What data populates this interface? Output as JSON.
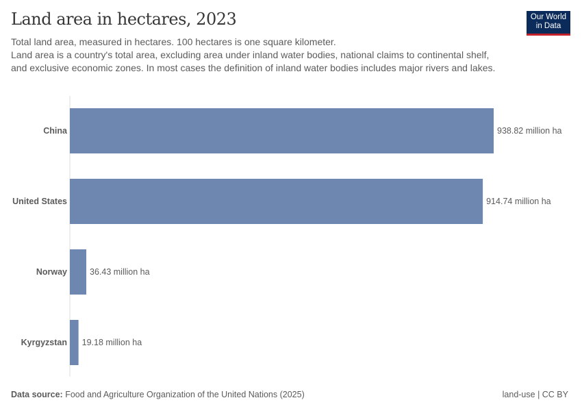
{
  "header": {
    "title": "Land area in hectares, 2023",
    "subtitle_lines": [
      "Total land area, measured in hectares. 100 hectares is one square kilometer.",
      "Land area is a country's total area, excluding area under inland water bodies, national claims to continental shelf, and exclusive economic zones. In most cases the definition of inland water bodies includes major rivers and lakes."
    ]
  },
  "logo": {
    "line1": "Our World",
    "line2": "in Data",
    "bg": "#0b2c5a",
    "accent": "#c4222b"
  },
  "footer": {
    "source_label": "Data source:",
    "source": "Food and Agriculture Organization of the United Nations (2025)",
    "license": "land-use | CC BY"
  },
  "chart_data": {
    "type": "bar",
    "orientation": "horizontal",
    "title": "Land area in hectares, 2023",
    "categories": [
      "China",
      "United States",
      "Norway",
      "Kyrgyzstan"
    ],
    "values": [
      938.82,
      914.74,
      36.43,
      19.18
    ],
    "unit": "million ha",
    "labels": [
      "938.82 million ha",
      "914.74 million ha",
      "36.43 million ha",
      "19.18 million ha"
    ],
    "xlim": [
      0,
      938.82
    ],
    "grid": false,
    "color": "#6d87b1"
  }
}
